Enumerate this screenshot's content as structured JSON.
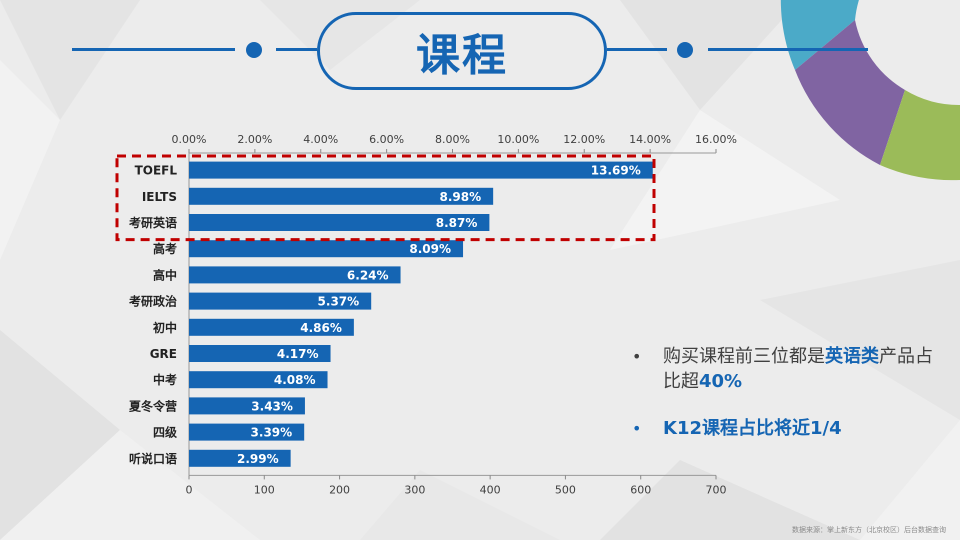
{
  "title": "课程",
  "bullets": [
    {
      "prefix": "购买课程前三位都是",
      "highlight": "英语类",
      "middle": "产品占比超",
      "strong": "40%"
    },
    {
      "strong_a": "K12",
      "middle": "课程占比将近",
      "strong_b": "1/4"
    }
  ],
  "source_note": "数据来源：掌上新东方（北京校区）后台数据查询",
  "chart_data": {
    "type": "bar",
    "orientation": "horizontal",
    "categories": [
      "TOEFL",
      "IELTS",
      "考研英语",
      "高考",
      "高中",
      "考研政治",
      "初中",
      "GRE",
      "中考",
      "夏冬令营",
      "四级",
      "听说口语"
    ],
    "values": [
      616,
      404,
      399,
      364,
      281,
      242,
      219,
      188,
      184,
      154,
      153,
      135
    ],
    "data_labels": [
      "13.69%",
      "8.98%",
      "8.87%",
      "8.09%",
      "6.24%",
      "5.37%",
      "4.86%",
      "4.17%",
      "4.08%",
      "3.43%",
      "3.39%",
      "2.99%"
    ],
    "top_axis_ticks": [
      "0.00%",
      "2.00%",
      "4.00%",
      "6.00%",
      "8.00%",
      "10.00%",
      "12.00%",
      "14.00%",
      "16.00%"
    ],
    "bottom_axis_ticks": [
      "0",
      "100",
      "200",
      "300",
      "400",
      "500",
      "600",
      "700"
    ],
    "xlim": [
      0,
      700
    ],
    "highlighted_categories": [
      "TOEFL",
      "IELTS",
      "考研英语"
    ],
    "bar_color": "#1565b3",
    "highlight_box_color": "#c00000"
  }
}
